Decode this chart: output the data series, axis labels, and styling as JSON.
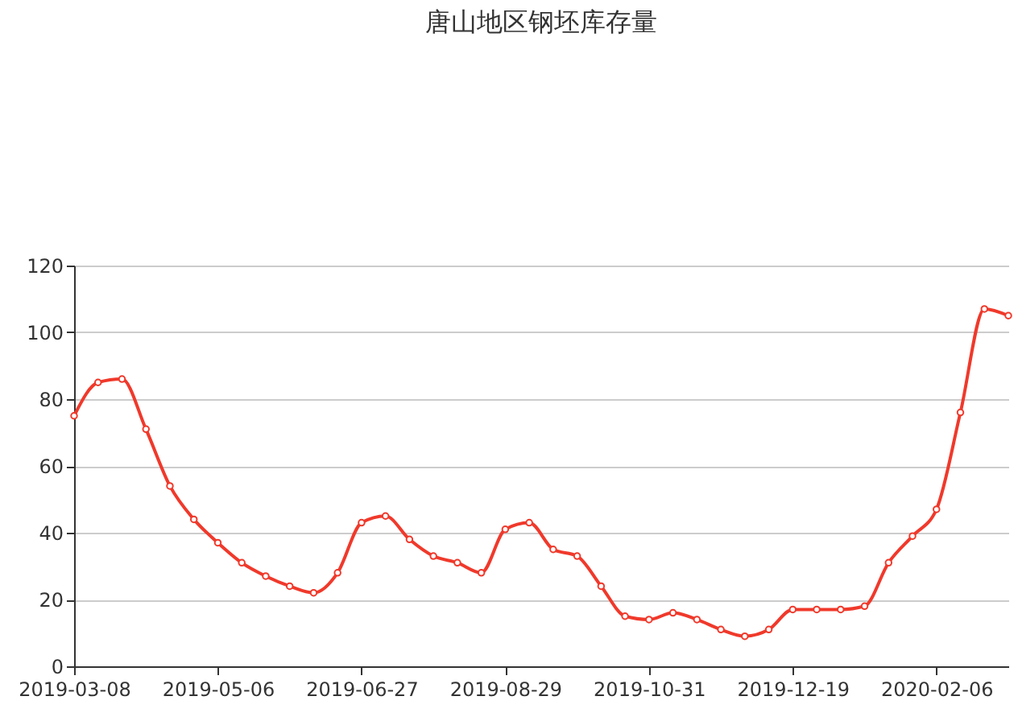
{
  "chart_data": {
    "type": "line",
    "title": "唐山地区钢坯库存量",
    "categories": [
      "2019-03-08",
      null,
      null,
      null,
      null,
      null,
      "2019-05-06",
      null,
      null,
      null,
      null,
      null,
      "2019-06-27",
      null,
      null,
      null,
      null,
      null,
      "2019-08-29",
      null,
      null,
      null,
      null,
      null,
      "2019-10-31",
      null,
      null,
      null,
      null,
      null,
      "2019-12-19",
      null,
      null,
      null,
      null,
      null,
      "2020-02-06",
      null,
      null,
      null
    ],
    "series": [
      {
        "color": "#f0392b",
        "values": [
          75,
          85,
          86,
          71,
          54,
          44,
          37,
          31,
          27,
          24,
          22,
          28,
          43,
          45,
          38,
          33,
          31,
          28,
          41,
          43,
          35,
          33,
          24,
          15,
          14,
          16,
          14,
          11,
          9,
          11,
          17,
          17,
          17,
          18,
          31,
          39,
          47,
          76,
          107,
          105
        ]
      }
    ],
    "ylim": [
      0,
      120
    ],
    "yticks": [
      0,
      20,
      40,
      60,
      80,
      100,
      120
    ],
    "grid": "y",
    "marker": "circle",
    "line_style": "solid"
  }
}
